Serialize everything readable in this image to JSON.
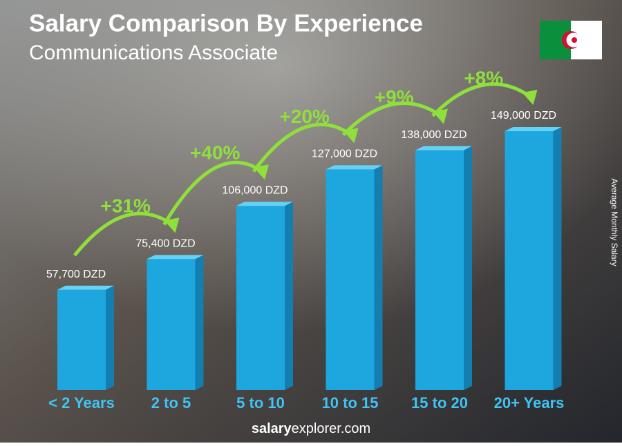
{
  "chart_data": {
    "type": "bar",
    "title": "Salary Comparison By Experience",
    "subtitle": "Communications Associate",
    "y_axis_label": "Average Monthly Salary",
    "categories": [
      "< 2 Years",
      "2 to 5",
      "5 to 10",
      "10 to 15",
      "15 to 20",
      "20+ Years"
    ],
    "values": [
      57700,
      75400,
      106000,
      127000,
      138000,
      149000
    ],
    "value_labels": [
      "57,700 DZD",
      "75,400 DZD",
      "106,000 DZD",
      "127,000 DZD",
      "138,000 DZD",
      "149,000 DZD"
    ],
    "changes": [
      "+31%",
      "+40%",
      "+20%",
      "+9%",
      "+8%"
    ],
    "color": "#1ea6de",
    "footer": {
      "brand": "salary",
      "rest": "explorer.com"
    }
  }
}
